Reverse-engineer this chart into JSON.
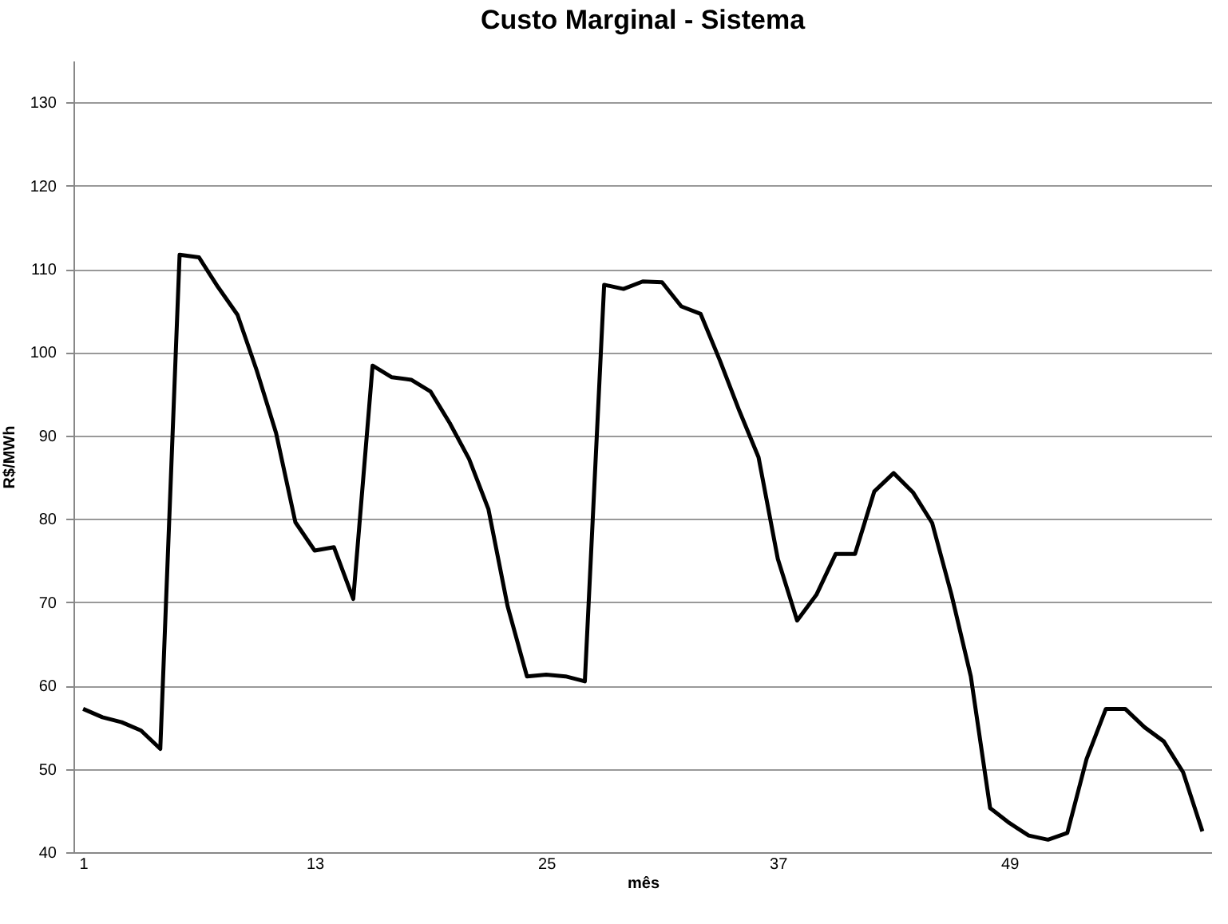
{
  "chart_data": {
    "type": "line",
    "title": "Custo Marginal - Sistema",
    "xlabel": "mês",
    "ylabel": "R$/MWh",
    "categories": [
      "1",
      null,
      null,
      null,
      null,
      null,
      null,
      null,
      null,
      null,
      null,
      null,
      "13",
      null,
      null,
      null,
      null,
      null,
      null,
      null,
      null,
      null,
      null,
      null,
      "25",
      null,
      null,
      null,
      null,
      null,
      null,
      null,
      null,
      null,
      null,
      null,
      "37",
      null,
      null,
      null,
      null,
      null,
      null,
      null,
      null,
      null,
      null,
      null,
      "49",
      null,
      null,
      null,
      null,
      null,
      null,
      null,
      null,
      null,
      null
    ],
    "series": [
      {
        "color": "#000000",
        "values": [
          57.2,
          56.2,
          55.6,
          54.6,
          52.4,
          111.7,
          111.4,
          107.8,
          104.5,
          97.8,
          90.3,
          79.6,
          76.2,
          76.6,
          70.4,
          98.4,
          97.0,
          96.7,
          95.3,
          91.5,
          87.2,
          81.2,
          69.5,
          61.1,
          61.3,
          61.1,
          60.5,
          108.1,
          107.6,
          108.5,
          108.4,
          105.5,
          104.6,
          99.0,
          93.0,
          87.4,
          75.2,
          67.8,
          70.9,
          75.8,
          75.8,
          83.3,
          85.5,
          83.2,
          79.5,
          70.9,
          61.1,
          45.3,
          43.5,
          42.0,
          41.5,
          42.3,
          51.2,
          57.2,
          57.2,
          55.0,
          53.3,
          49.6,
          42.5
        ]
      }
    ],
    "ylim": [
      40,
      135
    ],
    "yticks": [
      40,
      50,
      60,
      70,
      80,
      90,
      100,
      110,
      120,
      130
    ],
    "grid": "y",
    "legend": false,
    "marker": "none",
    "line_style": "solid"
  }
}
